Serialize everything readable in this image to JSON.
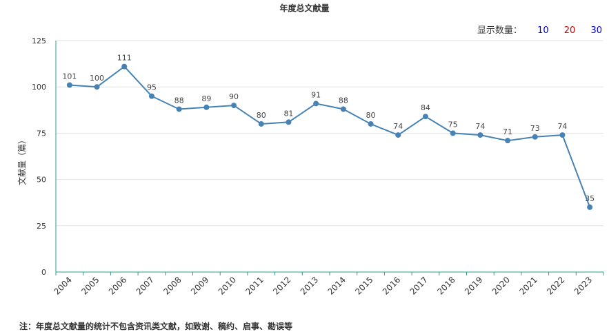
{
  "chart_data": {
    "type": "line",
    "title": "年度总文献量",
    "ylabel": "文献量（篇）",
    "xlabel": "",
    "ylim": [
      0,
      125
    ],
    "yticks": [
      0,
      25,
      50,
      75,
      100,
      125
    ],
    "categories": [
      "2004",
      "2005",
      "2006",
      "2007",
      "2008",
      "2009",
      "2010",
      "2011",
      "2012",
      "2013",
      "2014",
      "2015",
      "2016",
      "2017",
      "2018",
      "2019",
      "2020",
      "2021",
      "2022",
      "2023"
    ],
    "series": [
      {
        "values": [
          101,
          100,
          111,
          95,
          88,
          89,
          90,
          80,
          81,
          91,
          88,
          80,
          74,
          84,
          75,
          74,
          71,
          73,
          74,
          35
        ]
      }
    ],
    "grid": true,
    "line_color": "#4682b4",
    "axis_color": "#2a9d8f"
  },
  "controls": {
    "display_count_label": "显示数量：",
    "options": [
      {
        "label": "10",
        "color": "#0000cc"
      },
      {
        "label": "20",
        "color": "#cc0000"
      },
      {
        "label": "30",
        "color": "#0000cc"
      }
    ]
  },
  "footnote": "注：年度总文献量的统计不包含资讯类文献，如致谢、稿约、启事、勘误等"
}
